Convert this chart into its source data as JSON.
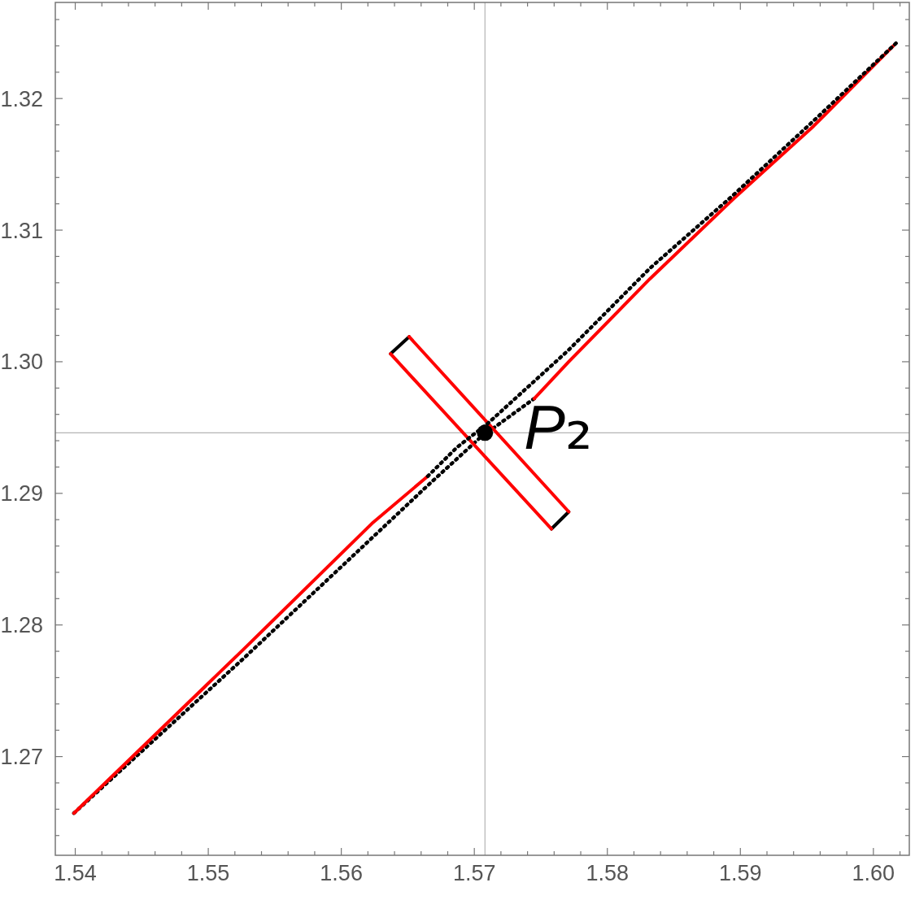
{
  "chart_data": {
    "type": "line",
    "xlim": [
      1.5385,
      1.6027
    ],
    "ylim": [
      1.2625,
      1.3273
    ],
    "xticks": [
      1.54,
      {
        "value": 1.542,
        "label": null
      },
      {
        "value": 1.544,
        "label": null
      },
      {
        "value": 1.546,
        "label": null
      },
      {
        "value": 1.548,
        "label": null
      },
      1.55,
      {
        "value": 1.552,
        "label": null
      },
      {
        "value": 1.554,
        "label": null
      },
      {
        "value": 1.556,
        "label": null
      },
      {
        "value": 1.558,
        "label": null
      },
      1.56,
      {
        "value": 1.562,
        "label": null
      },
      {
        "value": 1.564,
        "label": null
      },
      {
        "value": 1.566,
        "label": null
      },
      {
        "value": 1.568,
        "label": null
      },
      1.57,
      {
        "value": 1.572,
        "label": null
      },
      {
        "value": 1.574,
        "label": null
      },
      {
        "value": 1.576,
        "label": null
      },
      {
        "value": 1.578,
        "label": null
      },
      1.58,
      {
        "value": 1.582,
        "label": null
      },
      {
        "value": 1.584,
        "label": null
      },
      {
        "value": 1.586,
        "label": null
      },
      {
        "value": 1.588,
        "label": null
      },
      1.59,
      {
        "value": 1.592,
        "label": null
      },
      {
        "value": 1.594,
        "label": null
      },
      {
        "value": 1.596,
        "label": null
      },
      {
        "value": 1.598,
        "label": null
      },
      {
        "value": 1.6,
        "label": "1.60"
      },
      {
        "value": 1.602,
        "label": null
      }
    ],
    "yticks": [
      {
        "value": 1.264,
        "label": null
      },
      {
        "value": 1.266,
        "label": null
      },
      {
        "value": 1.268,
        "label": null
      },
      1.27,
      {
        "value": 1.272,
        "label": null
      },
      {
        "value": 1.274,
        "label": null
      },
      {
        "value": 1.276,
        "label": null
      },
      {
        "value": 1.278,
        "label": null
      },
      1.28,
      {
        "value": 1.282,
        "label": null
      },
      {
        "value": 1.284,
        "label": null
      },
      {
        "value": 1.286,
        "label": null
      },
      {
        "value": 1.288,
        "label": null
      },
      1.29,
      {
        "value": 1.292,
        "label": null
      },
      {
        "value": 1.294,
        "label": null
      },
      {
        "value": 1.296,
        "label": null
      },
      {
        "value": 1.298,
        "label": null
      },
      {
        "value": 1.3,
        "label": "1.30"
      },
      {
        "value": 1.302,
        "label": null
      },
      {
        "value": 1.304,
        "label": null
      },
      {
        "value": 1.306,
        "label": null
      },
      {
        "value": 1.308,
        "label": null
      },
      1.31,
      {
        "value": 1.312,
        "label": null
      },
      {
        "value": 1.314,
        "label": null
      },
      {
        "value": 1.316,
        "label": null
      },
      {
        "value": 1.318,
        "label": null
      },
      1.32,
      {
        "value": 1.322,
        "label": null
      },
      {
        "value": 1.324,
        "label": null
      },
      {
        "value": 1.326,
        "label": null
      }
    ],
    "series": [
      {
        "color": "#000000",
        "line_style": "dashed",
        "x": [
          1.5399,
          1.5527,
          1.5624,
          1.5665,
          1.5704,
          1.5745
        ],
        "values": [
          1.2657,
          1.2775,
          1.2867,
          1.2906,
          1.2942,
          1.2972
        ]
      },
      {
        "color": "#000000",
        "line_style": "solid",
        "x": [
          1.5637,
          1.5651
        ],
        "values": [
          1.3006,
          1.3019
        ]
      },
      {
        "color": "#000000",
        "line_style": "solid",
        "x": [
          1.5758,
          1.5771
        ],
        "values": [
          1.2873,
          1.2886
        ]
      },
      {
        "color": "#ff0000",
        "line_style": "solid",
        "x": [
          1.5399,
          1.5527,
          1.5624,
          1.5665
        ],
        "values": [
          1.2657,
          1.2782,
          1.2878,
          1.2913
        ]
      },
      {
        "color": "#ff0000",
        "line_style": "solid",
        "x": [
          1.5745,
          1.5771,
          1.5832,
          1.5894,
          1.5955,
          1.6015
        ],
        "values": [
          1.2972,
          1.3,
          1.3063,
          1.3123,
          1.3179,
          1.324
        ]
      },
      {
        "color": "#ff0000",
        "line_style": "solid",
        "x": [
          1.5637,
          1.5758
        ],
        "values": [
          1.3006,
          1.2873
        ]
      },
      {
        "color": "#ff0000",
        "line_style": "solid",
        "x": [
          1.5651,
          1.5771
        ],
        "values": [
          1.3019,
          1.2886
        ]
      },
      {
        "color": "#000000",
        "line_style": "dashed",
        "x": [
          1.5665,
          1.5687,
          1.571,
          1.5771,
          1.5832,
          1.5894,
          1.5955,
          1.6017
        ],
        "values": [
          1.2913,
          1.2935,
          1.2953,
          1.3009,
          1.3071,
          1.3126,
          1.3183,
          1.3242
        ]
      },
      {
        "type": "scatter",
        "color": "#000000",
        "marker": "circle",
        "x": [
          1.5708
        ],
        "values": [
          1.2946
        ]
      }
    ],
    "ref_lines": [
      {
        "axis": "x",
        "value": 1.5708,
        "color": "#b3b3b3"
      },
      {
        "axis": "y",
        "value": 1.2946,
        "color": "#b3b3b3"
      }
    ],
    "annotations": [
      {
        "text": "P₂",
        "x": 1.5708,
        "y": 1.2946
      }
    ]
  }
}
